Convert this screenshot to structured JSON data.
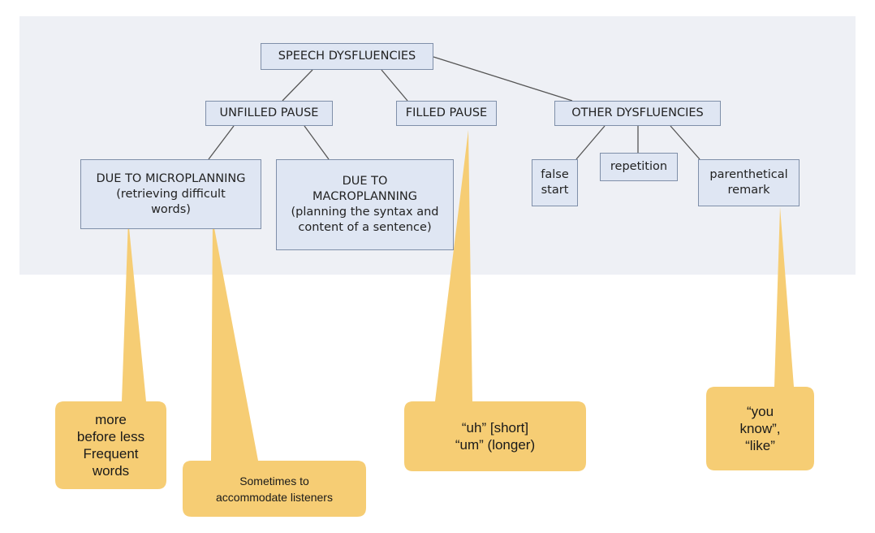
{
  "diagram": {
    "nodes": {
      "root": "SPEECH DYSFLUENCIES",
      "unfilled": "UNFILLED PAUSE",
      "filled": "FILLED PAUSE",
      "other": "OTHER DYSFLUENCIES",
      "micro": "DUE TO MICROPLANNING\n(retrieving difficult\nwords)",
      "macro": "DUE TO\nMACROPLANNING\n(planning the syntax and\ncontent of a sentence)",
      "false_start": "false\nstart",
      "repetition": "repetition",
      "parenthetical": "parenthetical\nremark"
    },
    "callouts": {
      "frequency": "more\nbefore less\nFrequent\nwords",
      "listeners": "Sometimes to\naccommodate listeners",
      "uh_um": "“uh” [short]\n“um” (longer)",
      "you_know": "“you\nknow”,\n“like”"
    },
    "colors": {
      "panel": "#eef0f5",
      "node_fill": "#dfe6f3",
      "node_border": "#7f8fa9",
      "callout_fill": "#f6cd74"
    }
  }
}
